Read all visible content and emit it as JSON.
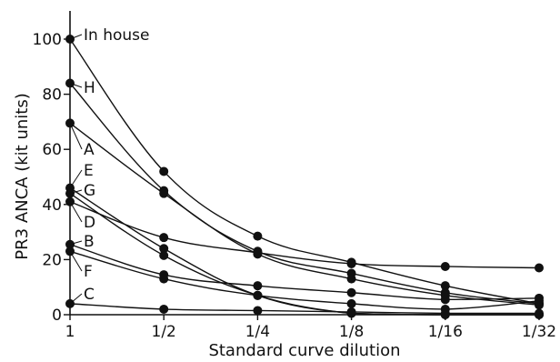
{
  "chart_data": {
    "type": "line",
    "title": "",
    "xlabel": "Standard curve dilution",
    "ylabel": "PR3 ANCA (kit units)",
    "categories": [
      "1",
      "1/2",
      "1/4",
      "1/8",
      "1/16",
      "1/32"
    ],
    "ylim": [
      0,
      100
    ],
    "yticks": [
      0,
      20,
      40,
      60,
      80,
      100
    ],
    "grid": false,
    "legend": "none (series labelled next to the y axis)",
    "series": [
      {
        "name": "In house",
        "values": [
          100,
          52,
          28.5,
          19,
          10.5,
          4
        ]
      },
      {
        "name": "H",
        "values": [
          84,
          45,
          23,
          15,
          8,
          4
        ]
      },
      {
        "name": "A",
        "values": [
          69.5,
          44,
          22,
          13,
          7,
          3.5
        ]
      },
      {
        "name": "E",
        "values": [
          46,
          24,
          7,
          0.5,
          0,
          0
        ]
      },
      {
        "name": "G",
        "values": [
          44,
          21.5,
          7,
          0.5,
          0,
          0
        ]
      },
      {
        "name": "D",
        "values": [
          41,
          28,
          22.5,
          18.5,
          17.5,
          17
        ]
      },
      {
        "name": "B",
        "values": [
          25.5,
          14.5,
          10.5,
          8,
          5.5,
          6
        ]
      },
      {
        "name": "F",
        "values": [
          23,
          13,
          7,
          4,
          2,
          5
        ]
      },
      {
        "name": "C",
        "values": [
          4,
          2,
          1.5,
          1,
          0.5,
          0.5
        ]
      }
    ]
  }
}
